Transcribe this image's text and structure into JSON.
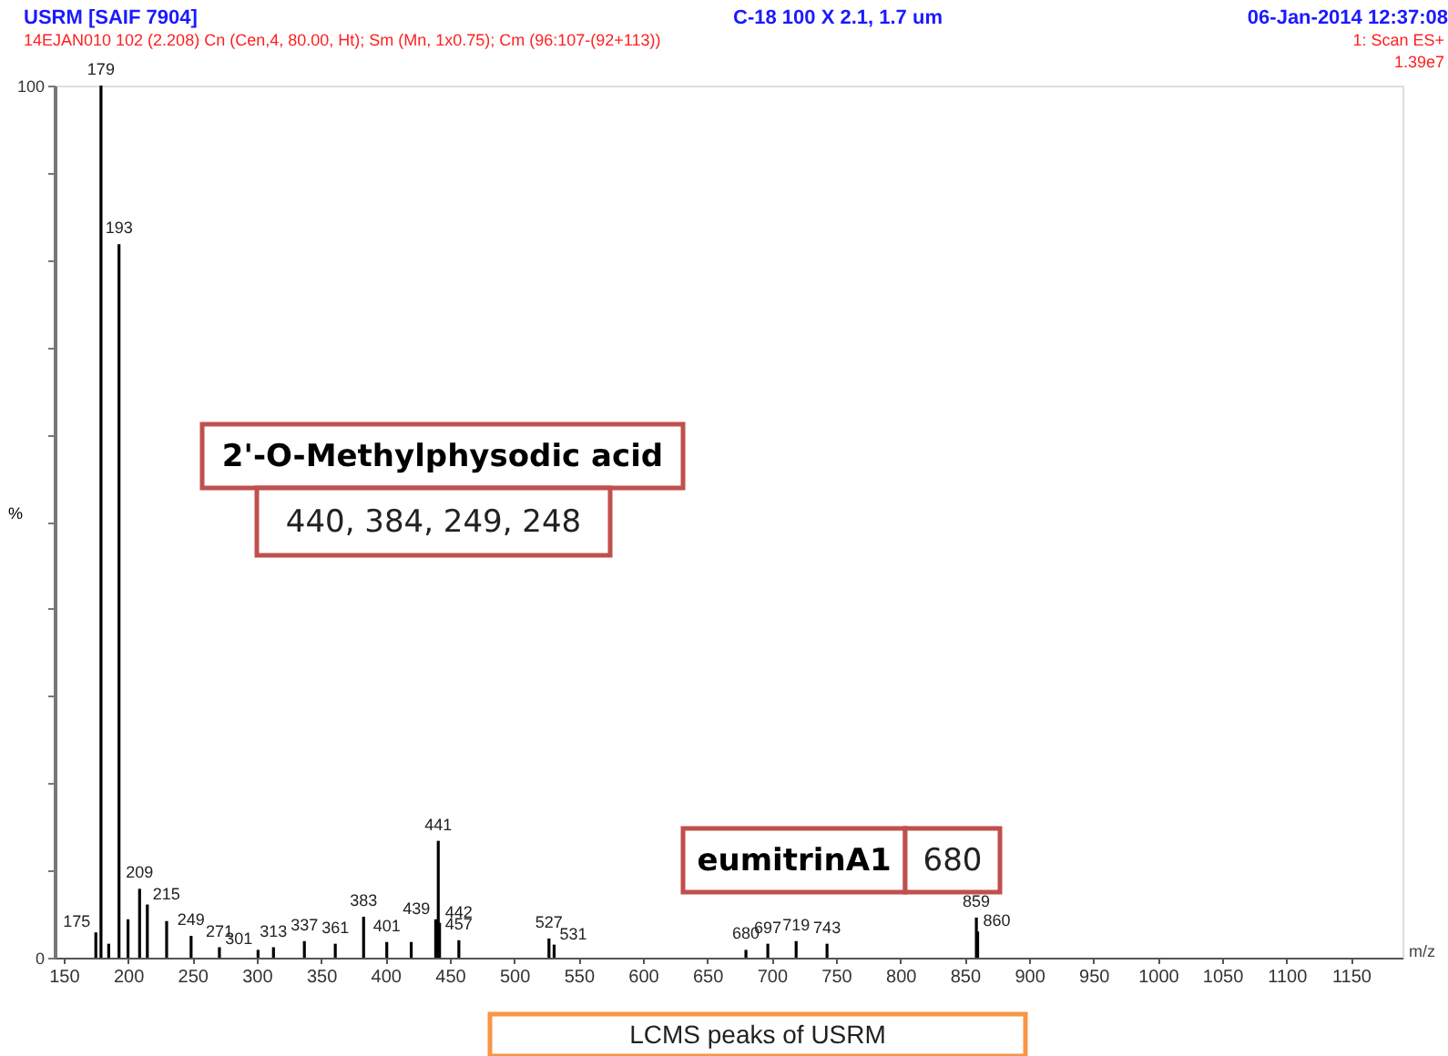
{
  "chart_data": {
    "type": "bar",
    "title": "USRM [SAIF 7904]",
    "subtitle": "14EJAN010  102 (2.208) Cn (Cen,4, 80.00, Ht); Sm (Mn, 1x0.75); Cm (96:107-(92+113))",
    "xlabel": "m/z",
    "ylabel": "%",
    "annotations": [
      "C-18 100  X 2.1, 1.7 um",
      "06-Jan-2014  12:37:08",
      "1: Scan ES+",
      "1.39e7",
      "2'-O-Methylphysodic acid",
      "440, 384, 249, 248",
      "eumitrinA1",
      "680",
      "LCMS peaks of USRM",
      {
        "text": "175",
        "x": 175,
        "y": 2.9
      },
      {
        "text": "179",
        "x": 179,
        "y": 100
      },
      {
        "text": "193",
        "x": 193,
        "y": 81.8
      },
      {
        "text": "209",
        "x": 209,
        "y": 7.9
      },
      {
        "text": "215",
        "x": 215,
        "y": 6.1
      },
      {
        "text": "249",
        "x": 249,
        "y": 2.5
      },
      {
        "text": "271",
        "x": 271,
        "y": 1.2
      },
      {
        "text": "301",
        "x": 301,
        "y": 0.9
      },
      {
        "text": "313",
        "x": 313,
        "y": 1.2
      },
      {
        "text": "337",
        "x": 337,
        "y": 1.9
      },
      {
        "text": "361",
        "x": 361,
        "y": 1.6
      },
      {
        "text": "383",
        "x": 383,
        "y": 4.7
      },
      {
        "text": "401",
        "x": 401,
        "y": 1.8
      },
      {
        "text": "439",
        "x": 439,
        "y": 4.4
      },
      {
        "text": "441",
        "x": 441,
        "y": 13.4
      },
      {
        "text": "442",
        "x": 442,
        "y": 4.0
      },
      {
        "text": "457",
        "x": 457,
        "y": 2.0
      },
      {
        "text": "527",
        "x": 527,
        "y": 2.2
      },
      {
        "text": "531",
        "x": 531,
        "y": 1.5
      },
      {
        "text": "680",
        "x": 680,
        "y": 0.9
      },
      {
        "text": "697",
        "x": 697,
        "y": 1.6
      },
      {
        "text": "719",
        "x": 719,
        "y": 1.9
      },
      {
        "text": "743",
        "x": 743,
        "y": 1.6
      },
      {
        "text": "859",
        "x": 859,
        "y": 4.6
      },
      {
        "text": "860",
        "x": 860,
        "y": 3.0
      }
    ],
    "x": [
      175,
      179,
      185,
      193,
      200,
      209,
      215,
      230,
      249,
      271,
      301,
      313,
      337,
      361,
      383,
      401,
      420,
      439,
      441,
      442,
      457,
      527,
      531,
      680,
      697,
      719,
      743,
      859,
      860
    ],
    "values": [
      2.9,
      100,
      1.6,
      81.8,
      4.4,
      7.9,
      6.1,
      4.2,
      2.5,
      1.2,
      0.9,
      1.2,
      1.9,
      1.6,
      4.7,
      1.8,
      1.8,
      4.4,
      13.4,
      4.0,
      2.0,
      2.2,
      1.5,
      0.9,
      1.6,
      1.9,
      1.6,
      4.6,
      3.0
    ],
    "color": "#000000",
    "xlim": [
      143,
      1190
    ],
    "xticks": [
      150,
      200,
      250,
      300,
      350,
      400,
      450,
      500,
      550,
      600,
      650,
      700,
      750,
      800,
      850,
      900,
      950,
      1000,
      1050,
      1100,
      1150
    ],
    "ylim": [
      0,
      100
    ],
    "yticks": [
      0,
      {
        "value": 10,
        "label": null
      },
      {
        "value": 20,
        "label": null
      },
      {
        "value": 30,
        "label": null
      },
      {
        "value": 40,
        "label": null
      },
      {
        "value": 50,
        "label": null
      },
      {
        "value": 60,
        "label": null
      },
      {
        "value": 70,
        "label": null
      },
      {
        "value": 80,
        "label": null
      },
      {
        "value": 90,
        "label": null
      },
      100
    ],
    "grid": false
  }
}
